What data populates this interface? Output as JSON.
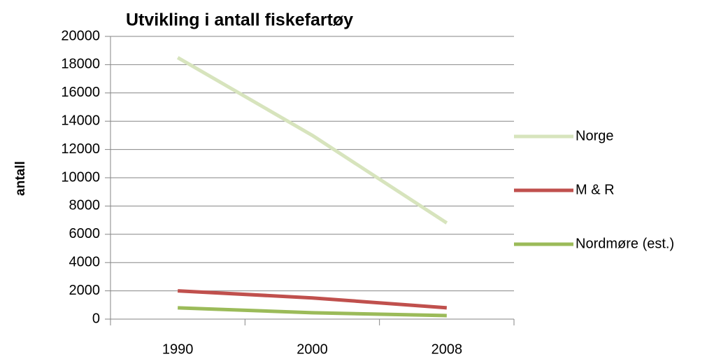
{
  "chart_data": {
    "type": "line",
    "title": "Utvikling i antall fiskefartøy",
    "y_label": "antall",
    "categories": [
      "1990",
      "2000",
      "2008"
    ],
    "series": [
      {
        "name": "Norge",
        "color": "#d7e4bd",
        "values": [
          18500,
          13000,
          6800
        ]
      },
      {
        "name": "M & R",
        "color": "#c0504d",
        "values": [
          2000,
          1500,
          800
        ]
      },
      {
        "name": "Nordmøre (est.)",
        "color": "#9bbb59",
        "values": [
          800,
          450,
          250
        ]
      }
    ],
    "ylim": [
      0,
      20000
    ],
    "yticks": [
      0,
      2000,
      4000,
      6000,
      8000,
      10000,
      12000,
      14000,
      16000,
      18000,
      20000
    ],
    "grid": true,
    "legend": "right"
  }
}
